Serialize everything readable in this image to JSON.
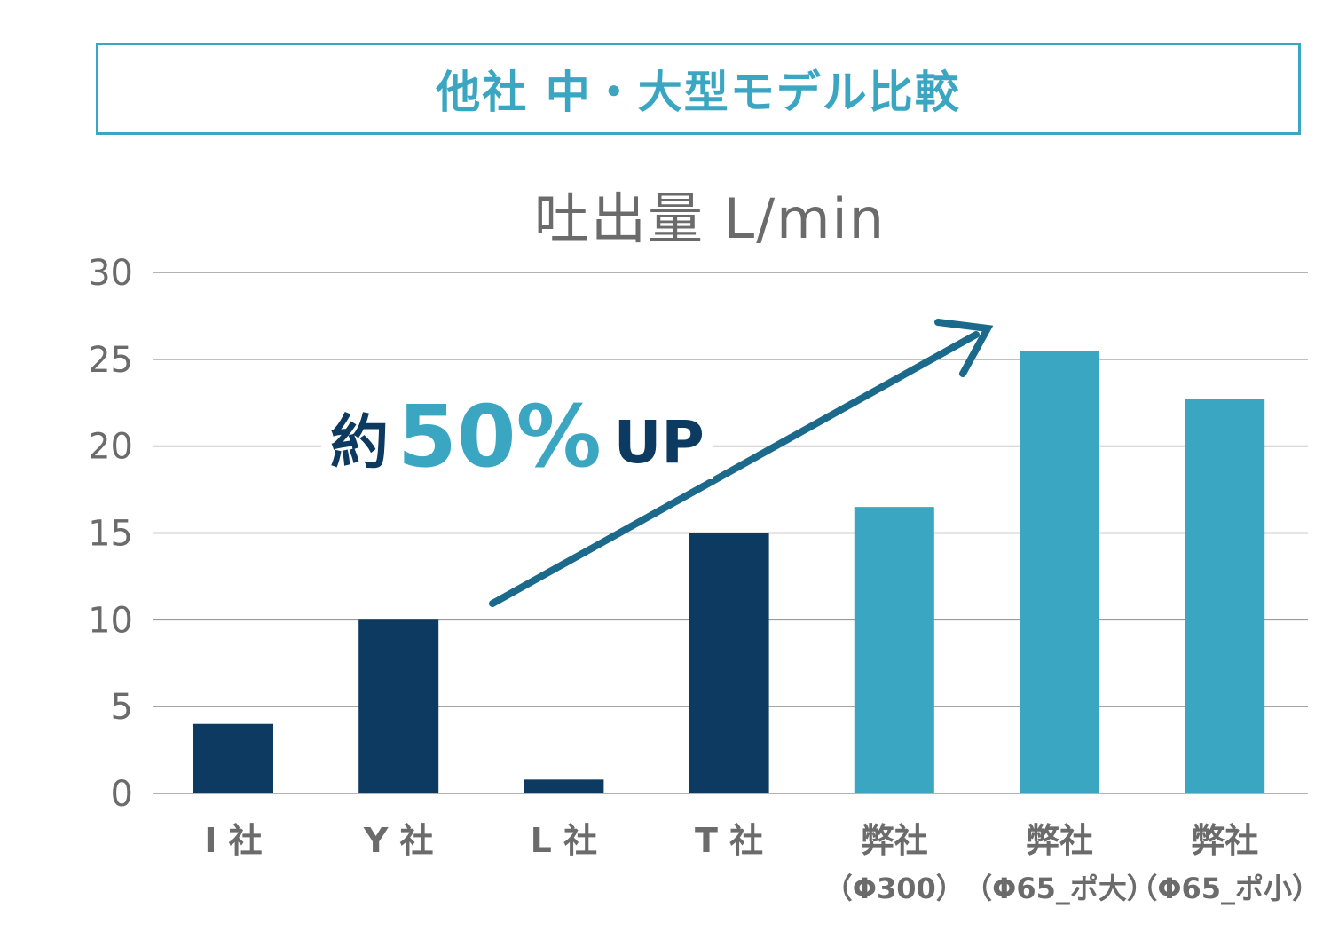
{
  "header": {
    "title": "他社 中・大型モデル比較"
  },
  "chart_data": {
    "type": "bar",
    "title": "",
    "ylabel": "吐出量 L/min",
    "ylim": [
      0,
      30
    ],
    "yticks": [
      "0",
      "5",
      "10",
      "15",
      "20",
      "25",
      "30"
    ],
    "grid": true,
    "categories": [
      {
        "line1": "I 社",
        "line2": ""
      },
      {
        "line1": "Y 社",
        "line2": ""
      },
      {
        "line1": "L 社",
        "line2": ""
      },
      {
        "line1": "T 社",
        "line2": ""
      },
      {
        "line1": "弊社",
        "line2": "（Φ300）"
      },
      {
        "line1": "弊社",
        "line2": "（Φ65_ポ大）"
      },
      {
        "line1": "弊社",
        "line2": "（Φ65_ポ小）"
      }
    ],
    "values": [
      4,
      10,
      0.8,
      15,
      16.5,
      25.5,
      22.7
    ],
    "bar_groups": [
      "competitor",
      "competitor",
      "competitor",
      "competitor",
      "own",
      "own",
      "own"
    ],
    "colors": {
      "competitor": "#0c3a61",
      "own": "#3aa6c2",
      "arrow": "#1b6a8c",
      "grid": "#9a9a9a"
    },
    "annotation": {
      "prefix": "約",
      "value": "50%",
      "suffix": "UP"
    }
  }
}
